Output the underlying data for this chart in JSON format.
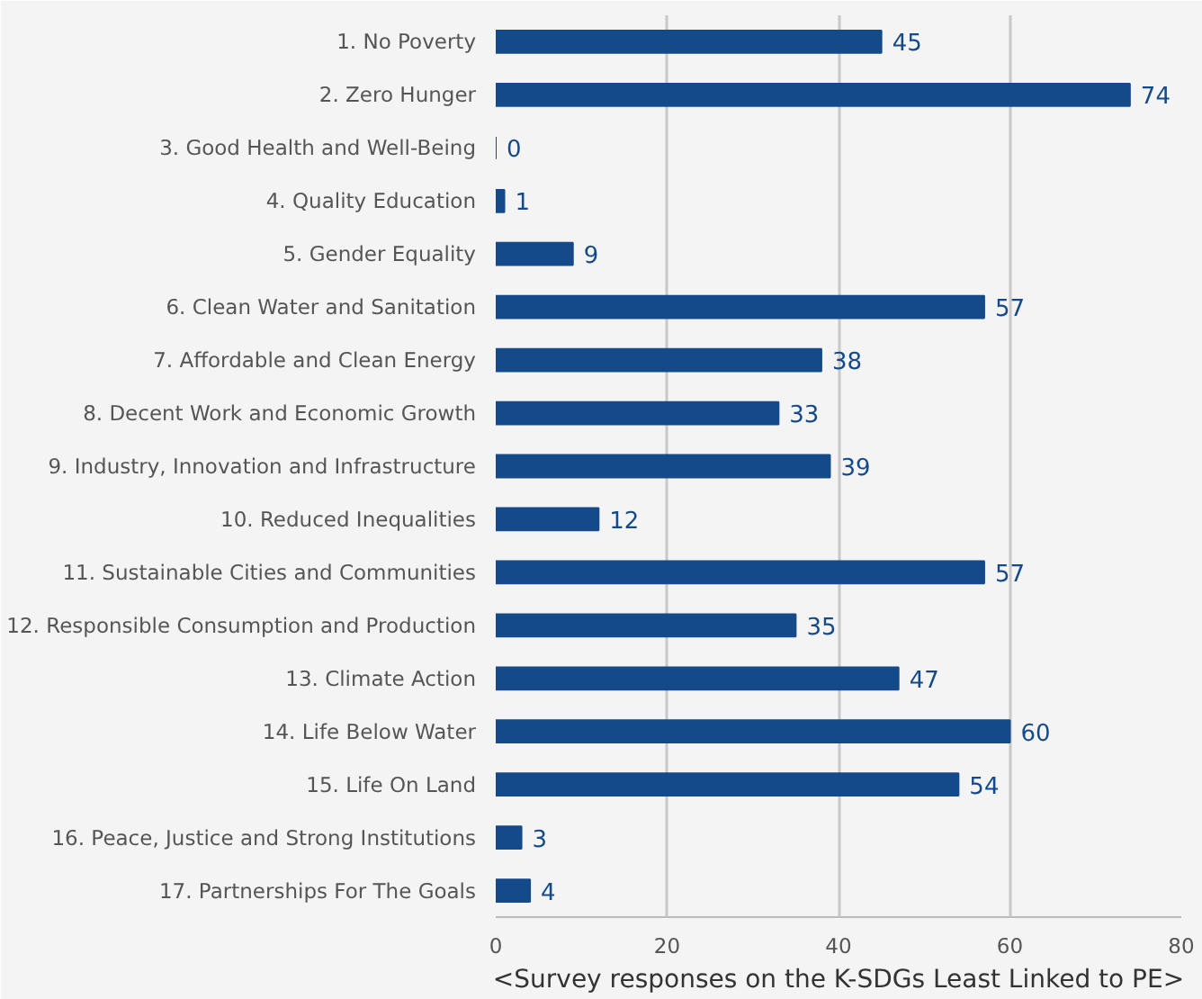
{
  "chart_data": {
    "type": "bar",
    "orientation": "horizontal",
    "xlabel": "<Survey responses on the K-SDGs Least Linked to PE>",
    "categories": [
      "1. No Poverty",
      "2. Zero Hunger",
      "3. Good Health and Well-Being",
      "4. Quality Education",
      "5. Gender Equality",
      "6. Clean Water and Sanitation",
      "7. Affordable and Clean Energy",
      "8. Decent Work and Economic Growth",
      "9. Industry, Innovation and Infrastructure",
      "10. Reduced Inequalities",
      "11. Sustainable Cities and Communities",
      "12. Responsible Consumption and Production",
      "13. Climate Action",
      "14. Life Below Water",
      "15. Life On Land",
      "16. Peace, Justice and Strong Institutions",
      "17. Partnerships For The Goals"
    ],
    "values": [
      45,
      74,
      0,
      1,
      9,
      57,
      38,
      33,
      39,
      12,
      57,
      35,
      47,
      60,
      54,
      3,
      4
    ],
    "color": "#154a8a",
    "xlim": [
      0,
      80
    ],
    "xticks": [
      0,
      20,
      40,
      60,
      80
    ],
    "grid": "x",
    "data_labels": true
  }
}
